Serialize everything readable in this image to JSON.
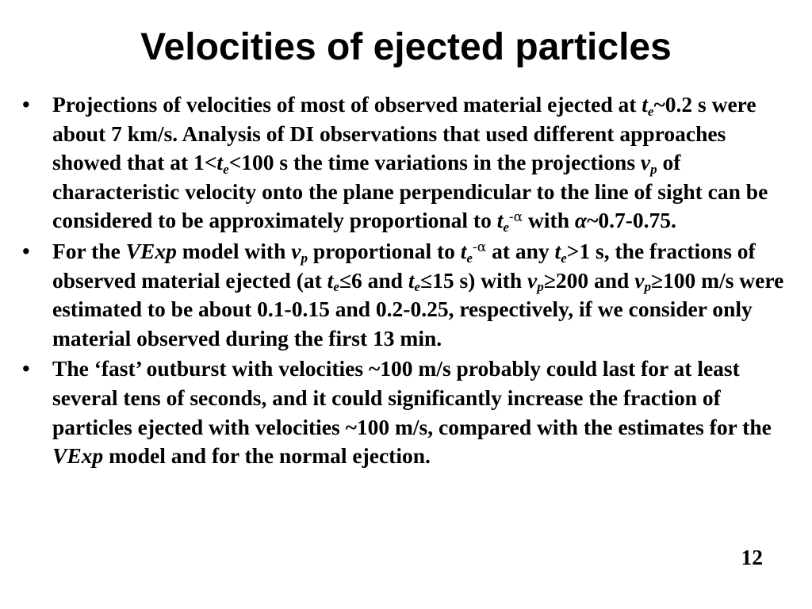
{
  "slide": {
    "title": "Velocities of ejected particles",
    "page_number": "12"
  },
  "bullets": [
    {
      "b1_1": "Projections of velocities of most of observed material ejected at ",
      "b1_t": "t",
      "b1_e": "e",
      "b1_2": "~0.2 s were about 7 km/s. Analysis of DI observations that used different approaches showed that at 1<",
      "b1_t2": "t",
      "b1_e2": "e",
      "b1_3": "<100 s the time variations in the projections ",
      "b1_v": "v",
      "b1_p": "p",
      "b1_4": " of characteristic velocity onto the plane perpendicular to the line of sight can be considered to be approximately proportional to ",
      "b1_t3": "t",
      "b1_e3": "e",
      "b1_sup": "-α",
      "b1_5": " with ",
      "b1_alpha": "α",
      "b1_6": "~0.7-0.75."
    },
    {
      "b2_1": "For the ",
      "b2_vexp": "VExp",
      "b2_2": " model with ",
      "b2_v": "v",
      "b2_p": "p",
      "b2_3": " proportional to ",
      "b2_t": "t",
      "b2_e": "e",
      "b2_sup": "-α",
      "b2_4": " at any ",
      "b2_t2": "t",
      "b2_e2": "e",
      "b2_5": ">1 s, the fractions of observed material ejected (at ",
      "b2_t3": "t",
      "b2_e3": "e",
      "b2_6": "≤6 and ",
      "b2_t4": "t",
      "b2_e4": "e",
      "b2_7": "≤15 s) with ",
      "b2_v2": "v",
      "b2_p2": "p",
      "b2_8": "≥200 and ",
      "b2_v3": "v",
      "b2_p3": "p",
      "b2_9": "≥100 m/s were estimated to be about 0.1-0.15 and 0.2-0.25, respectively, if we consider only material observed during the first 13 min."
    },
    {
      "b3_1": "The ‘fast’ outburst with velocities ~100 m/s probably could last for at least several tens of seconds, and it could significantly increase the fraction of particles ejected with velocities ~100 m/s, compared with the estimates for the ",
      "b3_vexp": "VExp",
      "b3_2": " model and for the normal ejection."
    }
  ],
  "bullet_marker": "•"
}
